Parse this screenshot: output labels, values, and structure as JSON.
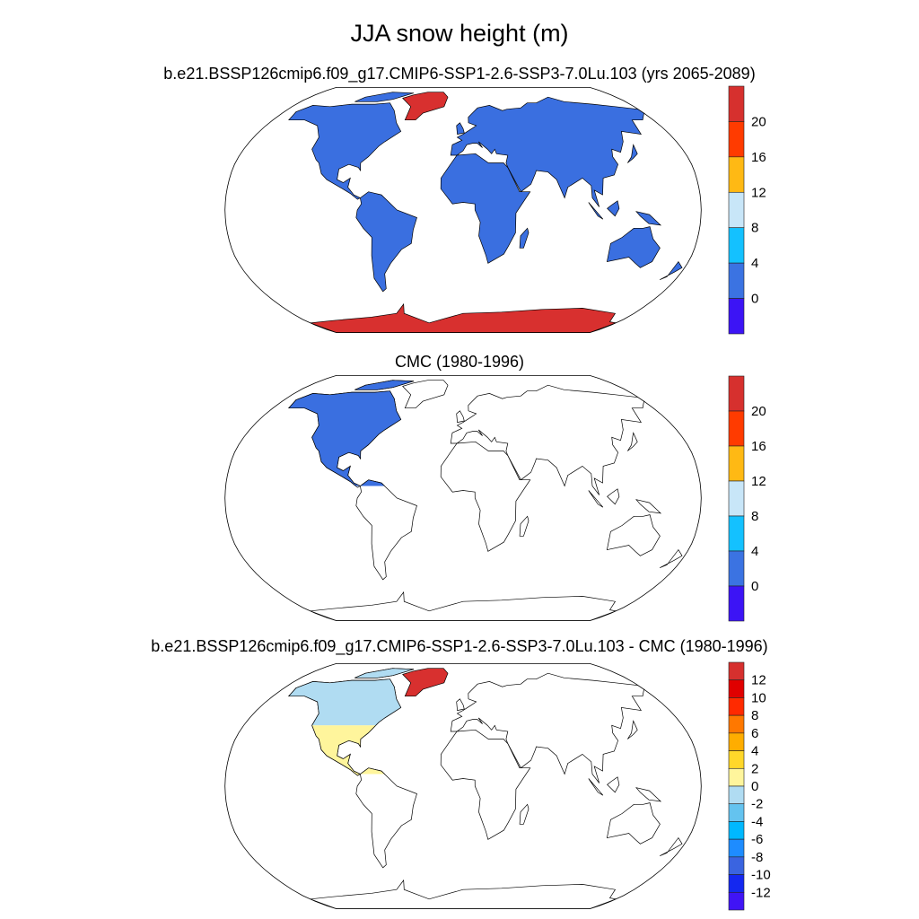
{
  "title": "JJA snow height (m)",
  "panels": [
    {
      "subtitle": "b.e21.BSSP126cmip6.f09_g17.CMIP6-SSP1-2.6-SSP3-7.0Lu.103 (yrs 2065-2089)",
      "land_fill": "#3a6fe0",
      "greenland_fill": "#d8302f",
      "antarctica_fill": "#d8302f",
      "colorbar": {
        "labels": [
          "20",
          "16",
          "12",
          "8",
          "4",
          "0"
        ],
        "colors": [
          "#d6302e",
          "#ff3b00",
          "#ffb914",
          "#c8e6f8",
          "#14c1ff",
          "#3b73e2",
          "#3c14f5"
        ]
      }
    },
    {
      "subtitle": "CMC (1980-1996)",
      "land_fill": "#3a6fe0",
      "colorbar": {
        "labels": [
          "20",
          "16",
          "12",
          "8",
          "4",
          "0"
        ],
        "colors": [
          "#d6302e",
          "#ff3b00",
          "#ffb914",
          "#c8e6f8",
          "#14c1ff",
          "#3b73e2",
          "#3c14f5"
        ]
      }
    },
    {
      "subtitle": "b.e21.BSSP126cmip6.f09_g17.CMIP6-SSP1-2.6-SSP3-7.0Lu.103 - CMC (1980-1996)",
      "north_fill": "#b0dcf2",
      "south_fill": "#fff59c",
      "greenland_fill": "#d8302f",
      "colorbar": {
        "labels": [
          "12",
          "10",
          "8",
          "6",
          "4",
          "2",
          "0",
          "-2",
          "-4",
          "-6",
          "-8",
          "-10",
          "-12"
        ],
        "colors": [
          "#d6302e",
          "#e00000",
          "#ff2a00",
          "#ff7800",
          "#ffad00",
          "#ffd72a",
          "#fff59c",
          "#b0dcf2",
          "#64c3ef",
          "#00b8ff",
          "#1e8cff",
          "#3a64e0",
          "#1428f0",
          "#4014f5"
        ]
      }
    }
  ]
}
